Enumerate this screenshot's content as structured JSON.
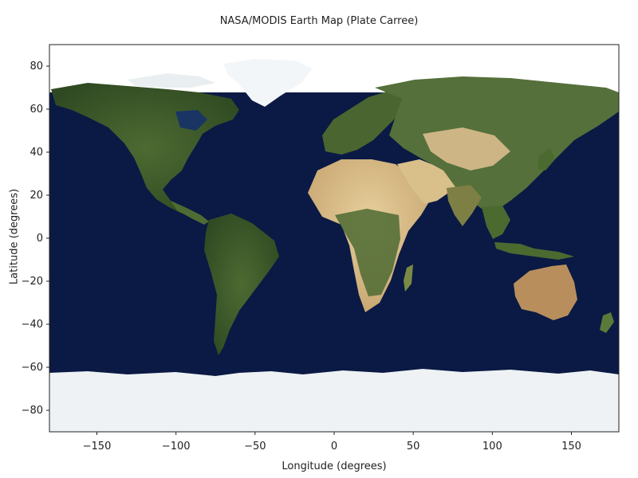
{
  "title": "NASA/MODIS Earth Map (Plate Carree)",
  "xlabel": "Longitude (degrees)",
  "ylabel": "Latitude (degrees)",
  "xlim": [
    -180,
    180
  ],
  "ylim": [
    -90,
    90
  ],
  "xticks": [
    -150,
    -100,
    -50,
    0,
    50,
    100,
    150
  ],
  "yticks": [
    80,
    60,
    40,
    20,
    0,
    -20,
    -40,
    -60,
    -80
  ],
  "colors": {
    "ocean": "#0a1a44",
    "ocean_shelf": "#1d3d6e",
    "forest": "#3b5a2a",
    "grass": "#6b7a3c",
    "desert": "#d8c08e",
    "arid": "#b89a62",
    "ice": "#f2f5f7",
    "tundra": "#7d8a6a"
  }
}
